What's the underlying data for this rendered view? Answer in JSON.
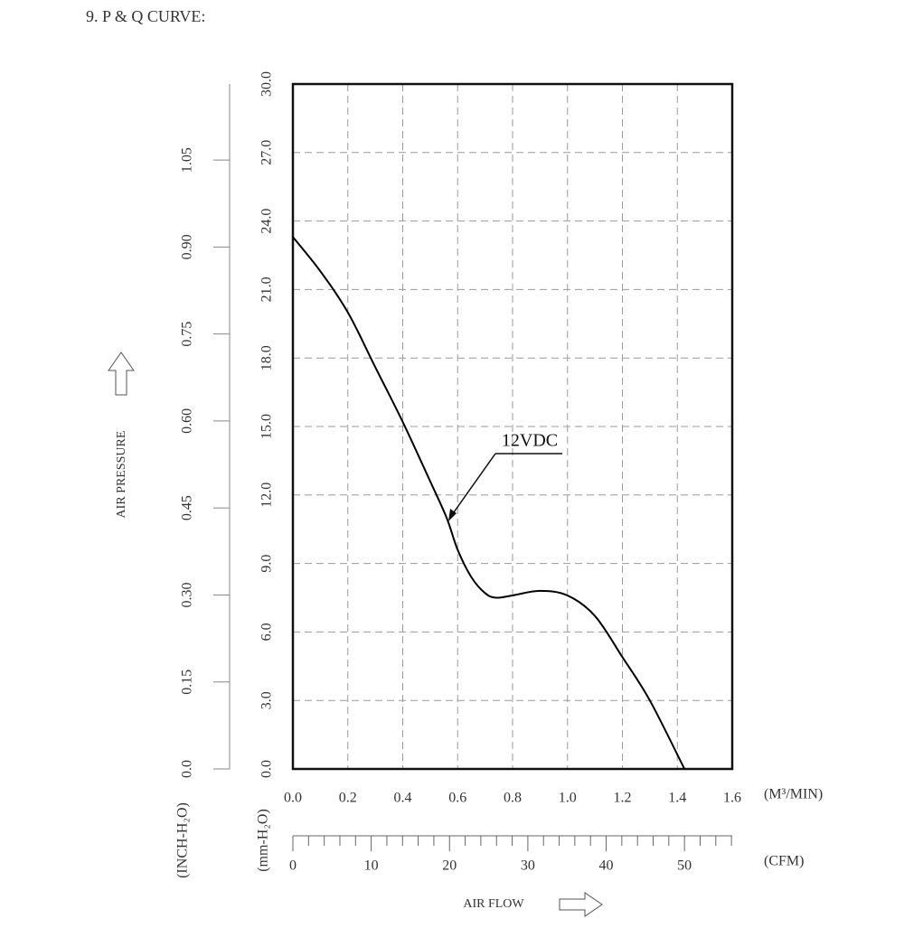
{
  "chart_data": {
    "type": "line",
    "title": "9. P & Q CURVE:",
    "xlabel": "AIR FLOW",
    "ylabel": "AIR PRESSURE",
    "x_unit": "(M³/MIN)",
    "x2_unit": "(CFM)",
    "y_unit": "(mm-H₂O)",
    "y2_unit": "(INCH-H₂O)",
    "x": [
      0,
      0.1,
      0.2,
      0.3,
      0.4,
      0.5,
      0.56,
      0.6,
      0.65,
      0.7,
      0.74,
      0.8,
      0.9,
      1.0,
      1.1,
      1.2,
      1.3,
      1.426
    ],
    "series": [
      {
        "name": "12VDC",
        "color": "#000000",
        "values": [
          23.3,
          21.8,
          20.0,
          17.6,
          15.2,
          12.6,
          11.0,
          9.6,
          8.4,
          7.7,
          7.5,
          7.6,
          7.8,
          7.6,
          6.7,
          4.9,
          3.0,
          0
        ]
      }
    ],
    "xlim": [
      0,
      1.6
    ],
    "xticks": [
      {
        "value": 0,
        "label": "0.0"
      },
      0.2,
      0.4,
      0.6,
      0.8,
      {
        "value": 1,
        "label": "1.0"
      },
      1.2,
      1.4,
      1.6
    ],
    "ylim": [
      0,
      30
    ],
    "yticks": [
      {
        "value": 0,
        "label": "0.0"
      },
      {
        "value": 3,
        "label": "3.0"
      },
      {
        "value": 6,
        "label": "6.0"
      },
      {
        "value": 9,
        "label": "9.0"
      },
      {
        "value": 12,
        "label": "12.0"
      },
      {
        "value": 15,
        "label": "15.0"
      },
      {
        "value": 18,
        "label": "18.0"
      },
      {
        "value": 21,
        "label": "21.0"
      },
      {
        "value": 24,
        "label": "24.0"
      },
      {
        "value": 27,
        "label": "27.0"
      },
      {
        "value": 30,
        "label": "30.0"
      }
    ],
    "y2lim": [
      0,
      1.181
    ],
    "y2ticks": [
      {
        "value": 0,
        "label": "0.0"
      },
      0.15,
      {
        "value": 0.3,
        "label": "0.30"
      },
      0.45,
      {
        "value": 0.6,
        "label": "0.60"
      },
      0.75,
      {
        "value": 0.9,
        "label": "0.90"
      },
      1.05
    ],
    "x2lim": [
      0,
      56.1
    ],
    "x2ticks": [
      0,
      10,
      20,
      30,
      40,
      50
    ],
    "x2minorticks": [
      2,
      4,
      6,
      8,
      12,
      14,
      16,
      18,
      22,
      24,
      26,
      28,
      32,
      34,
      36,
      38,
      42,
      44,
      46,
      48,
      52,
      54,
      56
    ],
    "grid": true
  }
}
